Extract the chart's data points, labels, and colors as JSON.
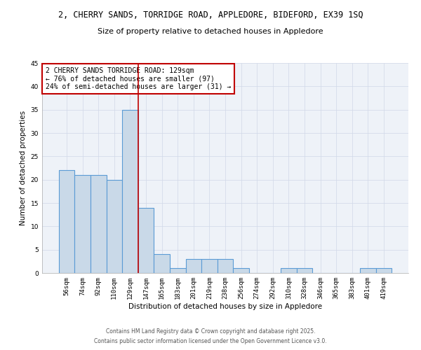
{
  "title_line1": "2, CHERRY SANDS, TORRIDGE ROAD, APPLEDORE, BIDEFORD, EX39 1SQ",
  "title_line2": "Size of property relative to detached houses in Appledore",
  "xlabel": "Distribution of detached houses by size in Appledore",
  "ylabel": "Number of detached properties",
  "categories": [
    "56sqm",
    "74sqm",
    "92sqm",
    "110sqm",
    "129sqm",
    "147sqm",
    "165sqm",
    "183sqm",
    "201sqm",
    "219sqm",
    "238sqm",
    "256sqm",
    "274sqm",
    "292sqm",
    "310sqm",
    "328sqm",
    "346sqm",
    "365sqm",
    "383sqm",
    "401sqm",
    "419sqm"
  ],
  "values": [
    22,
    21,
    21,
    20,
    35,
    14,
    4,
    1,
    3,
    3,
    3,
    1,
    0,
    0,
    1,
    1,
    0,
    0,
    0,
    1,
    1
  ],
  "bar_color": "#c9d9e8",
  "bar_edgecolor": "#5b9bd5",
  "bar_linewidth": 0.8,
  "vline_x_index": 4,
  "vline_color": "#c00000",
  "vline_linewidth": 1.2,
  "annotation_text": "2 CHERRY SANDS TORRIDGE ROAD: 129sqm\n← 76% of detached houses are smaller (97)\n24% of semi-detached houses are larger (31) →",
  "annotation_box_edgecolor": "#c00000",
  "annotation_box_facecolor": "white",
  "ylim": [
    0,
    45
  ],
  "yticks": [
    0,
    5,
    10,
    15,
    20,
    25,
    30,
    35,
    40,
    45
  ],
  "grid_color": "#d0d8e8",
  "bg_color": "#eef2f8",
  "footer_line1": "Contains HM Land Registry data © Crown copyright and database right 2025.",
  "footer_line2": "Contains public sector information licensed under the Open Government Licence v3.0.",
  "title_fontsize": 8.5,
  "title2_fontsize": 8,
  "axis_label_fontsize": 7.5,
  "tick_fontsize": 6.5,
  "annotation_fontsize": 7,
  "footer_fontsize": 5.5
}
